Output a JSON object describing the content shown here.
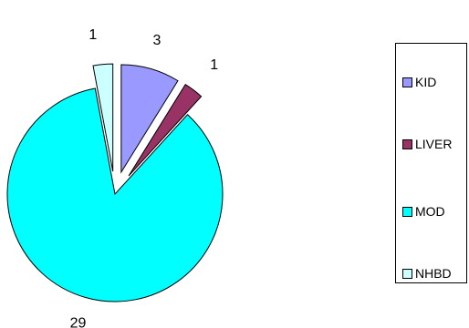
{
  "chart_data": {
    "type": "pie",
    "exploded": true,
    "slices": [
      {
        "label": "KID",
        "value": 3,
        "color": "#9999ff"
      },
      {
        "label": "LIVER",
        "value": 1,
        "color": "#993366"
      },
      {
        "label": "MOD",
        "value": 29,
        "color": "#00ffff"
      },
      {
        "label": "NHBD",
        "value": 1,
        "color": "#ccffff"
      }
    ],
    "data_labels": [
      "3",
      "1",
      "29",
      "1"
    ],
    "legend": {
      "placement": "right",
      "items": [
        "KID",
        "LIVER",
        "MOD",
        "NHBD"
      ]
    },
    "title": ""
  }
}
